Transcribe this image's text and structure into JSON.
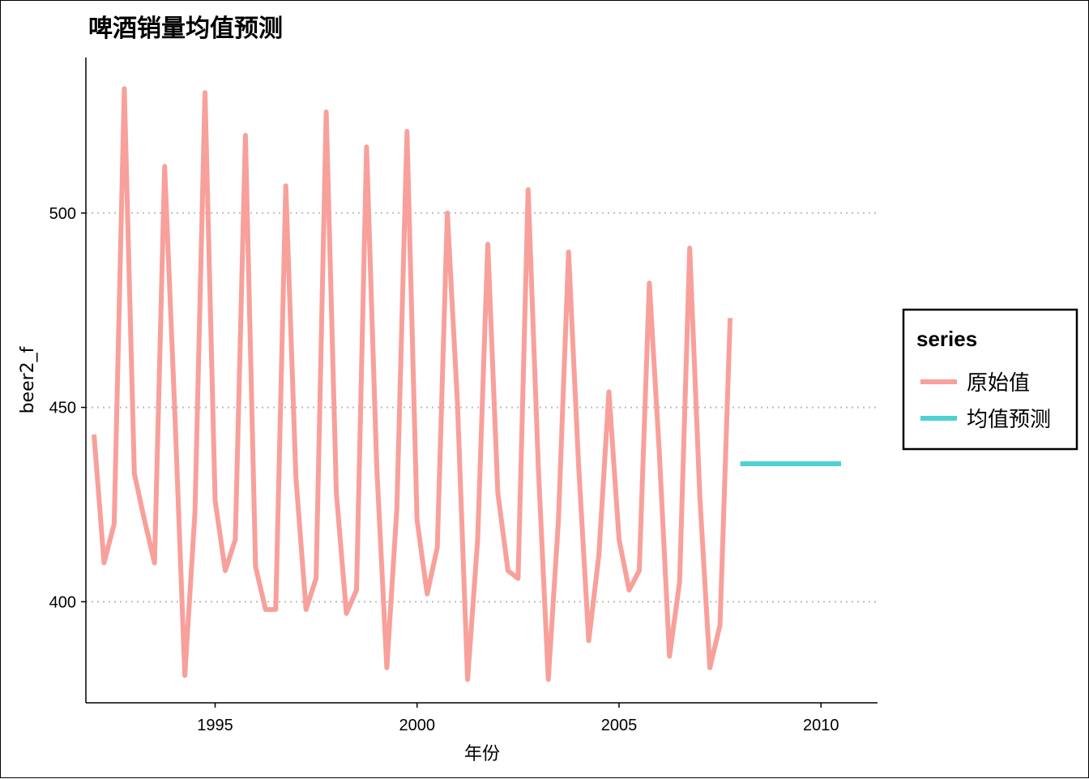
{
  "title": "啤酒销量均值预测",
  "chart_data": {
    "type": "line",
    "title": "啤酒销量均值预测",
    "xlabel": "年份",
    "ylabel": "beer2_f",
    "xlim": [
      1991.8,
      2011.4
    ],
    "ylim": [
      374,
      540
    ],
    "x_ticks": [
      1995,
      2000,
      2005,
      2010
    ],
    "y_ticks": [
      400,
      450,
      500
    ],
    "grid": "horizontal dotted (major y only)",
    "legend": {
      "title": "series",
      "position": "right"
    },
    "series": [
      {
        "name": "原始值",
        "color": "#F8A09B",
        "x": [
          1992.0,
          1992.25,
          1992.5,
          1992.75,
          1993.0,
          1993.25,
          1993.5,
          1993.75,
          1994.0,
          1994.25,
          1994.5,
          1994.75,
          1995.0,
          1995.25,
          1995.5,
          1995.75,
          1996.0,
          1996.25,
          1996.5,
          1996.75,
          1997.0,
          1997.25,
          1997.5,
          1997.75,
          1998.0,
          1998.25,
          1998.5,
          1998.75,
          1999.0,
          1999.25,
          1999.5,
          1999.75,
          2000.0,
          2000.25,
          2000.5,
          2000.75,
          2001.0,
          2001.25,
          2001.5,
          2001.75,
          2002.0,
          2002.25,
          2002.5,
          2002.75,
          2003.0,
          2003.25,
          2003.5,
          2003.75,
          2004.0,
          2004.25,
          2004.5,
          2004.75,
          2005.0,
          2005.25,
          2005.5,
          2005.75,
          2006.0,
          2006.25,
          2006.5,
          2006.75,
          2007.0,
          2007.25,
          2007.5,
          2007.75
        ],
        "values": [
          443,
          410,
          420,
          532,
          433,
          421,
          410,
          512,
          449,
          381,
          423,
          531,
          426,
          408,
          416,
          520,
          409,
          398,
          398,
          507,
          432,
          398,
          406,
          526,
          428,
          397,
          403,
          517,
          435,
          383,
          424,
          521,
          421,
          402,
          414,
          500,
          451,
          380,
          416,
          492,
          428,
          408,
          406,
          506,
          435,
          380,
          421,
          490,
          435,
          390,
          412,
          454,
          416,
          403,
          408,
          482,
          438,
          386,
          405,
          491,
          427,
          383,
          394,
          473
        ]
      },
      {
        "name": "均值预测",
        "color": "#4FD1D4",
        "x": [
          2008.0,
          2010.5
        ],
        "values": [
          435.5,
          435.5
        ]
      }
    ]
  }
}
